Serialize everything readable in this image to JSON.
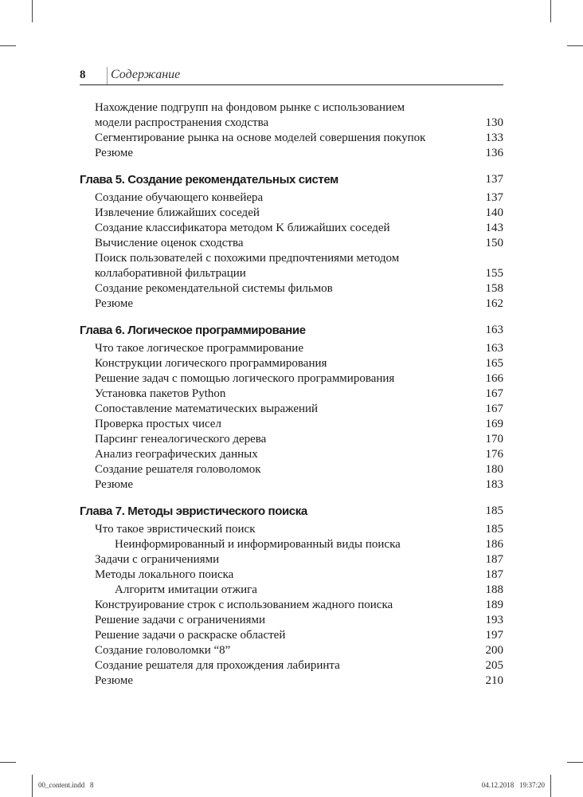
{
  "header": {
    "page_number": "8",
    "title": "Содержание"
  },
  "toc": [
    {
      "type": "entry",
      "text": "Нахождение подгрупп на фондовом рынке с использованием",
      "page": ""
    },
    {
      "type": "entry",
      "text": "модели распространения сходства",
      "page": "130"
    },
    {
      "type": "entry",
      "text": "Сегментирование рынка на основе моделей совершения покупок",
      "page": "133"
    },
    {
      "type": "entry",
      "text": "Резюме",
      "page": "136"
    },
    {
      "type": "chapter",
      "text": "Глава 5. Создание рекомендательных систем",
      "page": "137"
    },
    {
      "type": "entry",
      "text": "Создание обучающего конвейера",
      "page": "137"
    },
    {
      "type": "entry",
      "text": "Извлечение ближайших соседей",
      "page": "140"
    },
    {
      "type": "entry",
      "text": "Создание классификатора методом K ближайших соседей",
      "page": "143"
    },
    {
      "type": "entry",
      "text": "Вычисление оценок сходства",
      "page": "150"
    },
    {
      "type": "entry",
      "text": "Поиск пользователей с похожими предпочтениями методом",
      "page": ""
    },
    {
      "type": "entry",
      "text": "коллаборативной фильтрации",
      "page": "155"
    },
    {
      "type": "entry",
      "text": "Создание рекомендательной системы фильмов",
      "page": "158"
    },
    {
      "type": "entry",
      "text": "Резюме",
      "page": "162"
    },
    {
      "type": "chapter",
      "text": "Глава 6. Логическое программирование",
      "page": "163"
    },
    {
      "type": "entry",
      "text": "Что такое логическое программирование",
      "page": "163"
    },
    {
      "type": "entry",
      "text": "Конструкции логического программирования",
      "page": "165"
    },
    {
      "type": "entry",
      "text": "Решение задач с помощью логического программирования",
      "page": "166"
    },
    {
      "type": "entry",
      "text": "Установка пакетов Python",
      "page": "167"
    },
    {
      "type": "entry",
      "text": "Сопоставление математических выражений",
      "page": "167"
    },
    {
      "type": "entry",
      "text": "Проверка простых чисел",
      "page": "169"
    },
    {
      "type": "entry",
      "text": "Парсинг генеалогического дерева",
      "page": "170"
    },
    {
      "type": "entry",
      "text": "Анализ географических данных",
      "page": "176"
    },
    {
      "type": "entry",
      "text": "Создание решателя головоломок",
      "page": "180"
    },
    {
      "type": "entry",
      "text": "Резюме",
      "page": "183"
    },
    {
      "type": "chapter",
      "text": "Глава 7. Методы эвристического поиска",
      "page": "185"
    },
    {
      "type": "entry",
      "text": "Что такое эвристический поиск",
      "page": "185"
    },
    {
      "type": "sub",
      "text": "Неинформированный и информированный виды поиска",
      "page": "186"
    },
    {
      "type": "entry",
      "text": "Задачи с ограничениями",
      "page": "187"
    },
    {
      "type": "entry",
      "text": "Методы локального поиска",
      "page": "187"
    },
    {
      "type": "sub",
      "text": "Алгоритм имитации отжига",
      "page": "188"
    },
    {
      "type": "entry",
      "text": "Конструирование строк с использованием жадного поиска",
      "page": "189"
    },
    {
      "type": "entry",
      "text": "Решение задачи с ограничениями",
      "page": "193"
    },
    {
      "type": "entry",
      "text": "Решение задачи о раскраске областей",
      "page": "197"
    },
    {
      "type": "entry",
      "text": "Создание головоломки “8”",
      "page": "200"
    },
    {
      "type": "entry",
      "text": "Создание решателя для прохождения лабиринта",
      "page": "205"
    },
    {
      "type": "entry",
      "text": "Резюме",
      "page": "210"
    }
  ],
  "footer": {
    "file": "00_content.indd   8",
    "timestamp": "04.12.2018   19:37:20"
  }
}
